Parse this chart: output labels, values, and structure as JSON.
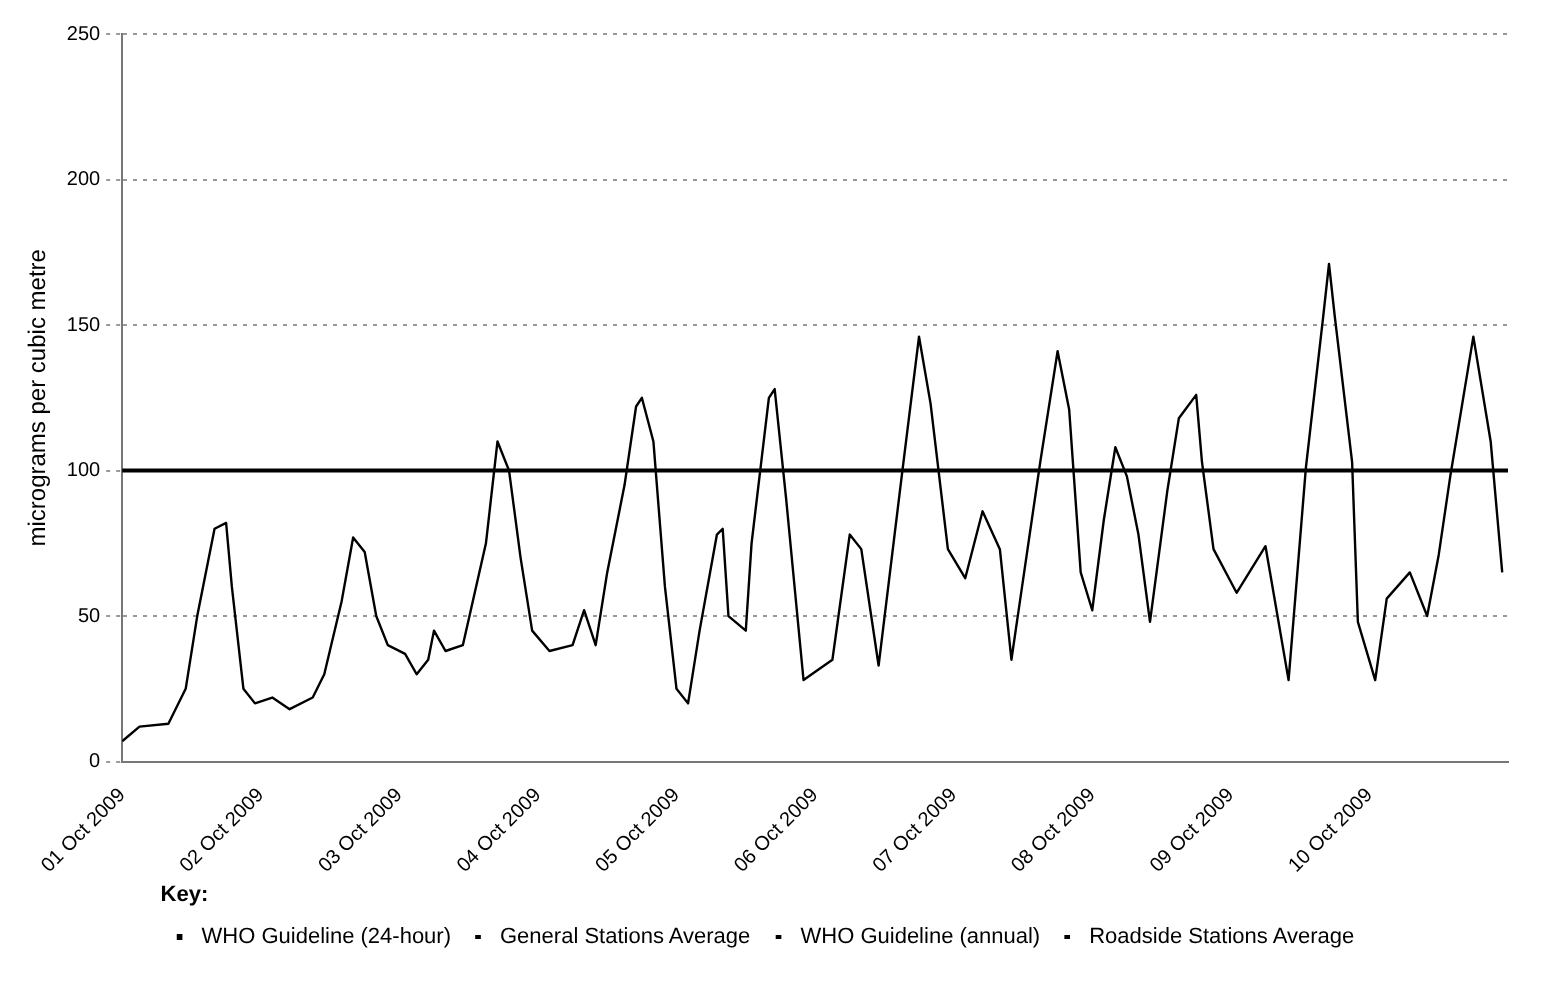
{
  "chart_data": {
    "type": "line",
    "ylabel": "micrograms per cubic metre",
    "xlim": [
      "2009-10-01",
      "2009-10-11"
    ],
    "xticks": [
      {
        "value": "2009-10-01",
        "label": "01 Oct 2009"
      },
      {
        "value": "2009-10-02",
        "label": "02 Oct 2009"
      },
      {
        "value": "2009-10-03",
        "label": "03 Oct 2009"
      },
      {
        "value": "2009-10-04",
        "label": "04 Oct 2009"
      },
      {
        "value": "2009-10-05",
        "label": "05 Oct 2009"
      },
      {
        "value": "2009-10-06",
        "label": "06 Oct 2009"
      },
      {
        "value": "2009-10-07",
        "label": "07 Oct 2009"
      },
      {
        "value": "2009-10-08",
        "label": "08 Oct 2009"
      },
      {
        "value": "2009-10-09",
        "label": "09 Oct 2009"
      },
      {
        "value": "2009-10-10",
        "label": "10 Oct 2009"
      }
    ],
    "ylim": [
      0,
      250
    ],
    "yticks": [
      0,
      50,
      100,
      150,
      200,
      250
    ],
    "grid": "y",
    "legend": "bottom",
    "annotations": [
      "Key:"
    ],
    "ref_lines": [
      {
        "axis": "y",
        "value": 100,
        "label": "WHO Guideline (24-hour)",
        "color": "#000000",
        "line_style": "solid"
      }
    ],
    "series": [
      {
        "name": "General Stations Average",
        "color": "#000000",
        "line_style": "solid",
        "x": [
          "2009-10-01T00:00",
          "2009-10-01T03:00",
          "2009-10-01T08:00",
          "2009-10-01T11:00",
          "2009-10-01T13:00",
          "2009-10-01T16:00",
          "2009-10-01T18:00",
          "2009-10-01T19:00",
          "2009-10-01T21:00",
          "2009-10-01T23:00",
          "2009-10-02T02:00",
          "2009-10-02T05:00",
          "2009-10-02T09:00",
          "2009-10-02T11:00",
          "2009-10-02T14:00",
          "2009-10-02T16:00",
          "2009-10-02T18:00",
          "2009-10-02T20:00",
          "2009-10-02T22:00",
          "2009-10-03T01:00",
          "2009-10-03T03:00",
          "2009-10-03T05:00",
          "2009-10-03T06:00",
          "2009-10-03T08:00",
          "2009-10-03T11:00",
          "2009-10-03T15:00",
          "2009-10-03T17:00",
          "2009-10-03T19:00",
          "2009-10-03T21:00",
          "2009-10-03T23:00",
          "2009-10-04T02:00",
          "2009-10-04T06:00",
          "2009-10-04T08:00",
          "2009-10-04T10:00",
          "2009-10-04T12:00",
          "2009-10-04T15:00",
          "2009-10-04T17:00",
          "2009-10-04T18:00",
          "2009-10-04T20:00",
          "2009-10-04T22:00",
          "2009-10-05T00:00",
          "2009-10-05T02:00",
          "2009-10-05T04:00",
          "2009-10-05T07:00",
          "2009-10-05T08:00",
          "2009-10-05T09:00",
          "2009-10-05T12:00",
          "2009-10-05T13:00",
          "2009-10-05T16:00",
          "2009-10-05T17:00",
          "2009-10-05T19:00",
          "2009-10-05T22:00",
          "2009-10-06T03:00",
          "2009-10-06T06:00",
          "2009-10-06T08:00",
          "2009-10-06T11:00",
          "2009-10-06T15:00",
          "2009-10-06T18:00",
          "2009-10-06T20:00",
          "2009-10-06T23:00",
          "2009-10-07T02:00",
          "2009-10-07T05:00",
          "2009-10-07T08:00",
          "2009-10-07T10:00",
          "2009-10-07T15:00",
          "2009-10-07T18:00",
          "2009-10-07T20:00",
          "2009-10-07T22:00",
          "2009-10-08T00:00",
          "2009-10-08T02:00",
          "2009-10-08T04:00",
          "2009-10-08T06:00",
          "2009-10-08T08:00",
          "2009-10-08T10:00",
          "2009-10-08T13:00",
          "2009-10-08T15:00",
          "2009-10-08T18:00",
          "2009-10-08T19:00",
          "2009-10-08T21:00",
          "2009-10-09T01:00",
          "2009-10-09T06:00",
          "2009-10-09T10:00",
          "2009-10-09T13:00",
          "2009-10-09T16:00",
          "2009-10-09T17:00",
          "2009-10-09T18:00",
          "2009-10-09T21:00",
          "2009-10-09T22:00",
          "2009-10-10T01:00",
          "2009-10-10T03:00",
          "2009-10-10T07:00",
          "2009-10-10T10:00",
          "2009-10-10T12:00",
          "2009-10-10T14:00",
          "2009-10-10T18:00",
          "2009-10-10T21:00",
          "2009-10-10T23:00"
        ],
        "values": [
          7,
          12,
          13,
          25,
          50,
          80,
          82,
          60,
          25,
          20,
          22,
          18,
          22,
          30,
          55,
          77,
          72,
          50,
          40,
          37,
          30,
          35,
          45,
          38,
          40,
          75,
          110,
          100,
          70,
          45,
          38,
          40,
          52,
          40,
          65,
          95,
          122,
          125,
          110,
          60,
          25,
          20,
          45,
          78,
          80,
          50,
          45,
          75,
          125,
          128,
          90,
          28,
          35,
          78,
          73,
          33,
          98,
          146,
          123,
          73,
          63,
          86,
          73,
          35,
          103,
          141,
          121,
          65,
          52,
          83,
          108,
          98,
          78,
          48,
          93,
          118,
          126,
          103,
          73,
          58,
          74,
          28,
          101,
          153,
          171,
          153,
          103,
          48,
          28,
          56,
          65,
          50,
          71,
          98,
          146,
          110,
          65
        ]
      },
      {
        "name": "WHO Guideline (annual)",
        "color": "#000000",
        "line_style": "solid"
      },
      {
        "name": "Roadside Stations Average",
        "color": "#000000",
        "line_style": "dashed"
      }
    ]
  }
}
